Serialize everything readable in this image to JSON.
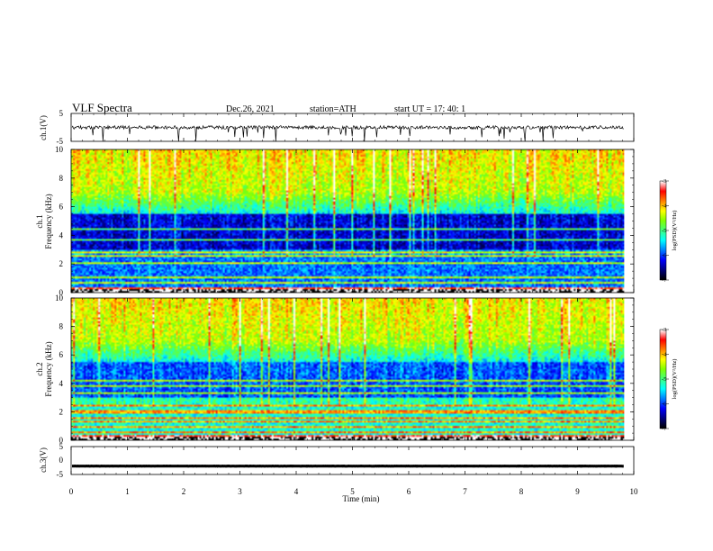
{
  "chart_data": {
    "type": "heatmap",
    "header": {
      "title": "VLF  Spectra",
      "date": "Dec.26, 2021",
      "station": "station=ATH",
      "start": "start  UT  =    17: 40: 1"
    },
    "x_axis": {
      "label": "Time  (min)",
      "range": [
        0,
        10
      ],
      "ticks": [
        "0",
        "1",
        "2",
        "3",
        "4",
        "5",
        "6",
        "7",
        "8",
        "9",
        "10"
      ],
      "data_end_min": 9.83
    },
    "panels": [
      {
        "type": "line",
        "ylabel": "ch.1(V)",
        "ylim": [
          -5,
          5
        ],
        "yticks": [
          "5",
          "-5"
        ],
        "baseline_v": 0,
        "description_values": {
          "noise_v": 0.4,
          "dip_depth_v": -5
        }
      },
      {
        "type": "heatmap",
        "ylabel_channel": "ch.1",
        "ylabel": "Frequency  (kHz)",
        "ylim": [
          0,
          10
        ],
        "yticks": [
          "0",
          "2",
          "4",
          "6",
          "8",
          "10"
        ],
        "colorbar": {
          "label": "log(PSD)(V²/Hz)",
          "range": [
            -7,
            -3
          ],
          "ticks": [
            "-3",
            "-4",
            "-5",
            "-6",
            "-7"
          ]
        }
      },
      {
        "type": "heatmap",
        "ylabel_channel": "ch.2",
        "ylabel": "Frequency  (kHz)",
        "ylim": [
          0,
          10
        ],
        "yticks": [
          "0",
          "2",
          "4",
          "6",
          "8",
          "10"
        ],
        "colorbar": {
          "label": "log(PSD)(V²/Hz)",
          "range": [
            -7,
            -3
          ],
          "ticks": [
            "-3",
            "-4",
            "-5",
            "-6",
            "-7"
          ]
        }
      },
      {
        "type": "line",
        "ylabel": "ch.3(V)",
        "ylim": [
          -5,
          5
        ],
        "yticks": [
          "5",
          "0",
          "-5"
        ],
        "baseline_v": -2
      }
    ],
    "colormap": [
      "#000000",
      "#00007f",
      "#0000ff",
      "#0080ff",
      "#00ffff",
      "#40ff80",
      "#80ff00",
      "#ffff00",
      "#ff8000",
      "#ff0000",
      "#ffffff"
    ]
  }
}
